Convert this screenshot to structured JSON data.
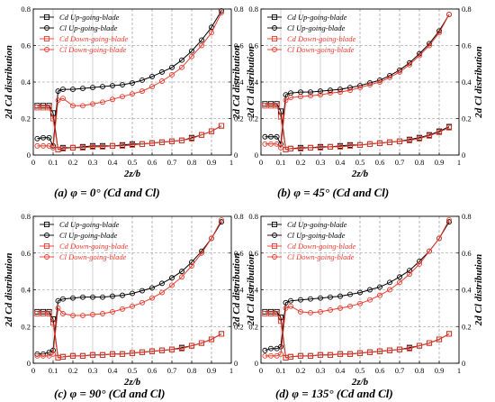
{
  "colors": {
    "black_series": "#000000",
    "red_series": "#e8392b",
    "grid": "#b5b5b5",
    "dashed_grid": "#888888"
  },
  "chart_data": [
    {
      "type": "line",
      "caption": "(a) φ  = 0° (Cd and Cl)",
      "xlabel": "2z/b",
      "ylabel_left": "2d Cd distribution",
      "ylabel_right": "2d Cl distribution",
      "xlim": [
        0,
        1
      ],
      "ylim": [
        0,
        0.8
      ],
      "x_ticks": [
        "0",
        "0.1",
        "0.2",
        "0.3",
        "0.4",
        "0.5",
        "0.6",
        "0.7",
        "0.8",
        "0.9",
        "1"
      ],
      "y_ticks": [
        "0",
        "0.2",
        "0.4",
        "0.6",
        "0.8"
      ],
      "legend": [
        "Cd Up-going-blade",
        "Cl Up-going-blade",
        "Cd Down-going-blade",
        "Cl Down-going-blade"
      ],
      "grid": true,
      "legend_position": "top-left",
      "x": [
        0.02,
        0.05,
        0.08,
        0.1,
        0.125,
        0.15,
        0.2,
        0.25,
        0.3,
        0.35,
        0.4,
        0.45,
        0.5,
        0.55,
        0.6,
        0.65,
        0.7,
        0.75,
        0.8,
        0.85,
        0.9,
        0.95
      ],
      "series": [
        {
          "name": "Cd Up-going-blade",
          "marker": "square",
          "color": "black",
          "values": [
            0.27,
            0.27,
            0.27,
            0.23,
            0.03,
            0.04,
            0.04,
            0.045,
            0.05,
            0.05,
            0.05,
            0.055,
            0.06,
            0.06,
            0.065,
            0.07,
            0.075,
            0.08,
            0.095,
            0.11,
            0.13,
            0.16
          ]
        },
        {
          "name": "Cl Up-going-blade",
          "marker": "circle",
          "color": "black",
          "values": [
            0.09,
            0.095,
            0.095,
            0.05,
            0.35,
            0.36,
            0.36,
            0.365,
            0.37,
            0.375,
            0.38,
            0.385,
            0.395,
            0.41,
            0.43,
            0.455,
            0.48,
            0.52,
            0.57,
            0.63,
            0.7,
            0.79
          ]
        },
        {
          "name": "Cd Down-going-blade",
          "marker": "square",
          "color": "red",
          "values": [
            0.26,
            0.26,
            0.26,
            0.2,
            0.03,
            0.035,
            0.04,
            0.04,
            0.045,
            0.045,
            0.05,
            0.05,
            0.055,
            0.06,
            0.065,
            0.07,
            0.075,
            0.08,
            0.09,
            0.11,
            0.13,
            0.16
          ]
        },
        {
          "name": "Cl Down-going-blade",
          "marker": "circle",
          "color": "red",
          "values": [
            0.05,
            0.05,
            0.05,
            0.04,
            0.3,
            0.31,
            0.27,
            0.27,
            0.28,
            0.29,
            0.305,
            0.32,
            0.335,
            0.35,
            0.375,
            0.405,
            0.44,
            0.48,
            0.54,
            0.6,
            0.67,
            0.78
          ]
        }
      ]
    },
    {
      "type": "line",
      "caption": "(b) φ  = 45° (Cd and Cl)",
      "xlabel": "2z/b",
      "ylabel_left": "2d Cd distribution",
      "ylabel_right": "2d Cl distribution",
      "xlim": [
        0,
        1
      ],
      "ylim": [
        0,
        0.8
      ],
      "x_ticks": [
        "0",
        "0.1",
        "0.2",
        "0.3",
        "0.4",
        "0.5",
        "0.6",
        "0.7",
        "0.8",
        "0.9",
        "1"
      ],
      "y_ticks": [
        "0",
        "0.2",
        "0.4",
        "0.6",
        "0.8"
      ],
      "legend": [
        "Cd Up-going-blade",
        "Cl Up-going-blade",
        "Cd Down-going-blade",
        "Cl Down-going-blade"
      ],
      "grid": true,
      "legend_position": "top-left",
      "x": [
        0.02,
        0.05,
        0.08,
        0.1,
        0.125,
        0.15,
        0.2,
        0.25,
        0.3,
        0.35,
        0.4,
        0.45,
        0.5,
        0.55,
        0.6,
        0.65,
        0.7,
        0.75,
        0.8,
        0.85,
        0.9,
        0.95
      ],
      "series": [
        {
          "name": "Cd Up-going-blade",
          "marker": "square",
          "color": "black",
          "values": [
            0.28,
            0.28,
            0.28,
            0.24,
            0.03,
            0.035,
            0.04,
            0.04,
            0.045,
            0.045,
            0.05,
            0.055,
            0.055,
            0.06,
            0.065,
            0.07,
            0.075,
            0.085,
            0.095,
            0.11,
            0.13,
            0.155
          ]
        },
        {
          "name": "Cl Up-going-blade",
          "marker": "circle",
          "color": "black",
          "values": [
            0.1,
            0.1,
            0.1,
            0.06,
            0.33,
            0.34,
            0.345,
            0.345,
            0.35,
            0.355,
            0.36,
            0.37,
            0.38,
            0.395,
            0.41,
            0.435,
            0.465,
            0.505,
            0.555,
            0.61,
            0.68,
            0.77
          ]
        },
        {
          "name": "Cd Down-going-blade",
          "marker": "square",
          "color": "red",
          "values": [
            0.27,
            0.27,
            0.27,
            0.21,
            0.03,
            0.035,
            0.035,
            0.04,
            0.04,
            0.045,
            0.045,
            0.05,
            0.055,
            0.06,
            0.065,
            0.07,
            0.075,
            0.08,
            0.09,
            0.105,
            0.125,
            0.15
          ]
        },
        {
          "name": "Cl Down-going-blade",
          "marker": "circle",
          "color": "red",
          "values": [
            0.06,
            0.06,
            0.06,
            0.04,
            0.3,
            0.315,
            0.32,
            0.325,
            0.33,
            0.34,
            0.345,
            0.355,
            0.37,
            0.385,
            0.4,
            0.425,
            0.455,
            0.495,
            0.545,
            0.6,
            0.67,
            0.77
          ]
        }
      ]
    },
    {
      "type": "line",
      "caption": "(c) φ  = 90° (Cd and Cl)",
      "xlabel": "2z/b",
      "ylabel_left": "2d Cd distribution",
      "ylabel_right": "2d Cl distribution",
      "xlim": [
        0,
        1
      ],
      "ylim": [
        0,
        0.8
      ],
      "x_ticks": [
        "0",
        "0.1",
        "0.2",
        "0.3",
        "0.4",
        "0.5",
        "0.6",
        "0.7",
        "0.8",
        "0.9",
        "1"
      ],
      "y_ticks": [
        "0",
        "0.2",
        "0.4",
        "0.6",
        "0.8"
      ],
      "legend": [
        "Cd Up-going-blade",
        "Cl Up-going-blade",
        "Cd Down-going-blade",
        "Cl Down-going-blade"
      ],
      "grid": true,
      "legend_position": "top-left",
      "x": [
        0.02,
        0.05,
        0.08,
        0.1,
        0.125,
        0.15,
        0.2,
        0.25,
        0.3,
        0.35,
        0.4,
        0.45,
        0.5,
        0.55,
        0.6,
        0.65,
        0.7,
        0.75,
        0.8,
        0.85,
        0.9,
        0.95
      ],
      "series": [
        {
          "name": "Cd Up-going-blade",
          "marker": "square",
          "color": "black",
          "values": [
            0.28,
            0.28,
            0.28,
            0.24,
            0.03,
            0.035,
            0.04,
            0.04,
            0.045,
            0.045,
            0.05,
            0.05,
            0.055,
            0.06,
            0.065,
            0.07,
            0.075,
            0.085,
            0.095,
            0.11,
            0.13,
            0.16
          ]
        },
        {
          "name": "Cl Up-going-blade",
          "marker": "circle",
          "color": "black",
          "values": [
            0.05,
            0.05,
            0.06,
            0.07,
            0.34,
            0.35,
            0.355,
            0.36,
            0.36,
            0.36,
            0.365,
            0.37,
            0.38,
            0.395,
            0.41,
            0.435,
            0.465,
            0.5,
            0.55,
            0.61,
            0.68,
            0.77
          ]
        },
        {
          "name": "Cd Down-going-blade",
          "marker": "square",
          "color": "red",
          "values": [
            0.27,
            0.27,
            0.27,
            0.22,
            0.03,
            0.035,
            0.04,
            0.04,
            0.045,
            0.045,
            0.05,
            0.05,
            0.055,
            0.06,
            0.065,
            0.07,
            0.075,
            0.08,
            0.095,
            0.11,
            0.13,
            0.16
          ]
        },
        {
          "name": "Cl Down-going-blade",
          "marker": "circle",
          "color": "red",
          "values": [
            0.04,
            0.04,
            0.04,
            0.05,
            0.3,
            0.27,
            0.26,
            0.26,
            0.265,
            0.27,
            0.28,
            0.295,
            0.31,
            0.33,
            0.355,
            0.385,
            0.425,
            0.47,
            0.53,
            0.6,
            0.68,
            0.78
          ]
        }
      ]
    },
    {
      "type": "line",
      "caption": "(d) φ  = 135° (Cd and Cl)",
      "xlabel": "2z/b",
      "ylabel_left": "2d Cd distribution",
      "ylabel_right": "2d Cl distribution",
      "xlim": [
        0,
        1
      ],
      "ylim": [
        0,
        0.8
      ],
      "x_ticks": [
        "0",
        "0.1",
        "0.2",
        "0.3",
        "0.4",
        "0.5",
        "0.6",
        "0.7",
        "0.8",
        "0.9",
        "1"
      ],
      "y_ticks": [
        "0",
        "0.2",
        "0.4",
        "0.6",
        "0.8"
      ],
      "legend": [
        "Cd Up-going-blade",
        "Cl Up-going-blade",
        "Cd Down-going-blade",
        "Cl Down-going-blade"
      ],
      "grid": true,
      "legend_position": "top-left",
      "x": [
        0.02,
        0.05,
        0.08,
        0.1,
        0.125,
        0.15,
        0.2,
        0.25,
        0.3,
        0.35,
        0.4,
        0.45,
        0.5,
        0.55,
        0.6,
        0.65,
        0.7,
        0.75,
        0.8,
        0.85,
        0.9,
        0.95
      ],
      "series": [
        {
          "name": "Cd Up-going-blade",
          "marker": "square",
          "color": "black",
          "values": [
            0.28,
            0.28,
            0.28,
            0.25,
            0.03,
            0.035,
            0.04,
            0.04,
            0.045,
            0.045,
            0.05,
            0.05,
            0.055,
            0.06,
            0.065,
            0.07,
            0.075,
            0.085,
            0.095,
            0.11,
            0.13,
            0.16
          ]
        },
        {
          "name": "Cl Up-going-blade",
          "marker": "circle",
          "color": "black",
          "values": [
            0.07,
            0.08,
            0.08,
            0.09,
            0.33,
            0.34,
            0.345,
            0.35,
            0.355,
            0.36,
            0.365,
            0.375,
            0.385,
            0.4,
            0.415,
            0.44,
            0.47,
            0.505,
            0.555,
            0.61,
            0.68,
            0.77
          ]
        },
        {
          "name": "Cd Down-going-blade",
          "marker": "square",
          "color": "red",
          "values": [
            0.27,
            0.27,
            0.27,
            0.23,
            0.03,
            0.035,
            0.04,
            0.04,
            0.045,
            0.045,
            0.05,
            0.05,
            0.055,
            0.06,
            0.065,
            0.07,
            0.075,
            0.08,
            0.095,
            0.11,
            0.13,
            0.16
          ]
        },
        {
          "name": "Cl Down-going-blade",
          "marker": "circle",
          "color": "red",
          "values": [
            0.04,
            0.04,
            0.04,
            0.05,
            0.3,
            0.31,
            0.28,
            0.275,
            0.28,
            0.29,
            0.3,
            0.31,
            0.325,
            0.345,
            0.37,
            0.4,
            0.44,
            0.485,
            0.54,
            0.61,
            0.68,
            0.78
          ]
        }
      ]
    }
  ]
}
